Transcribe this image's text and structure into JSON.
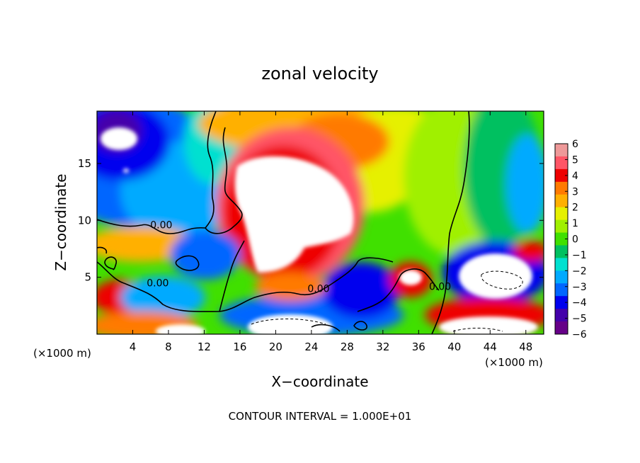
{
  "chart_data": {
    "type": "heatmap",
    "title": "zonal velocity",
    "xlabel": "X−coordinate",
    "ylabel": "Z−coordinate",
    "x_unit_left": "(×1000 m)",
    "x_unit_right": "(×1000 m)",
    "footer": "CONTOUR INTERVAL = 1.000E+01",
    "xlim": [
      0,
      50
    ],
    "ylim": [
      0,
      19.6
    ],
    "x_ticks": [
      4,
      8,
      12,
      16,
      20,
      24,
      28,
      32,
      36,
      40,
      44,
      48
    ],
    "y_ticks": [
      5,
      10,
      15
    ],
    "colorbar": {
      "range": [
        -6,
        6
      ],
      "ticks": [
        6,
        5,
        4,
        3,
        2,
        1,
        0,
        -1,
        -2,
        -3,
        -4,
        -5,
        -6
      ],
      "tick_labels": [
        "6",
        "5",
        "4",
        "3",
        "2",
        "1",
        "0",
        "−1",
        "−2",
        "−3",
        "−4",
        "−5",
        "−6"
      ],
      "colors": [
        "#ee9999",
        "#ff5566",
        "#ee0000",
        "#ff7a00",
        "#ffb000",
        "#e6f000",
        "#a0f000",
        "#40e000",
        "#00c060",
        "#00e0d0",
        "#00aaff",
        "#0066ff",
        "#0000ee",
        "#4400aa",
        "#660088"
      ]
    },
    "contour_labels": [
      {
        "text": "0.00",
        "x": 7.2,
        "y": 9.3
      },
      {
        "text": "0.00",
        "x": 6.8,
        "y": 4.2
      },
      {
        "text": "0.00",
        "x": 24.8,
        "y": 3.7
      },
      {
        "text": "0.00",
        "x": 38.4,
        "y": 3.9
      }
    ],
    "regions": [
      {
        "type": "clipped-positive",
        "note": "above scale",
        "center": [
          22.5,
          9
        ]
      },
      {
        "type": "clipped-negative",
        "note": "below scale",
        "center": [
          2.5,
          17
        ]
      }
    ]
  }
}
